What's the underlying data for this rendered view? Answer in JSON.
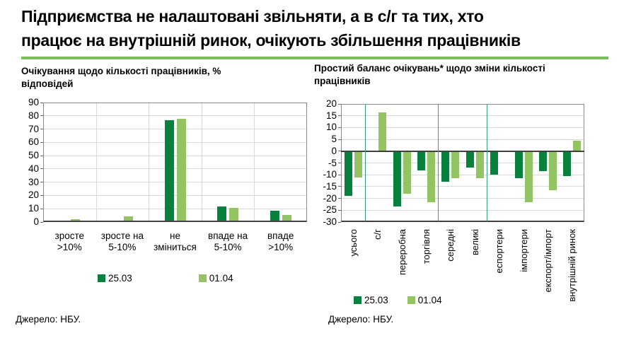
{
  "header": {
    "title_line1": "Підприємства не налаштовані звільняти, а в с/г та тих, хто",
    "title_line2": "працює на внутрішній ринок, очікують збільшення працівників"
  },
  "colors": {
    "series_25_03": "#08803E",
    "series_01_04": "#92C464",
    "title_underline": "#7CBE5B",
    "group_separator": "#35A07C",
    "gridline": "#D9D9D9",
    "plot_border": "#8A8A8A",
    "zero_line": "#404040"
  },
  "chart_data": [
    {
      "type": "bar",
      "title": "Очікування щодо кількості працівників, % відповідей",
      "categories": [
        "зросте\n>10%",
        "зросте на\n5-10%",
        "не\nзміниться",
        "впаде на\n5-10%",
        "впаде\n>10%"
      ],
      "series": [
        {
          "name": "25.03",
          "color": "#08803E",
          "values": [
            1,
            1,
            76.5,
            11.5,
            8.5
          ]
        },
        {
          "name": "01.04",
          "color": "#92C464",
          "values": [
            2,
            4,
            77.5,
            10.5,
            5.5
          ]
        }
      ],
      "ylim": [
        0,
        90
      ],
      "ytick_step": 10,
      "grid": true,
      "legend_position": "bottom",
      "source": "Джерело: НБУ."
    },
    {
      "type": "bar",
      "title": "Простий баланс очікувань* щодо зміни кількості працівників",
      "categories": [
        "усього",
        "с/г",
        "переробна",
        "торгівля",
        "середні",
        "великі",
        "еспортери",
        "імпортери",
        "експорт/імпорт",
        "внутрішній ринок"
      ],
      "series": [
        {
          "name": "25.03",
          "color": "#08803E",
          "values": [
            -19,
            0,
            -23.5,
            -8,
            -13,
            -7,
            -10,
            -11.5,
            -8.5,
            -10.5
          ]
        },
        {
          "name": "01.04",
          "color": "#92C464",
          "values": [
            -11,
            16.5,
            -18,
            -21.5,
            -11.5,
            -11.5,
            0,
            -21.5,
            -16.5,
            4.5
          ]
        }
      ],
      "ylim": [
        -30,
        20
      ],
      "ytick_step": 5,
      "grid": true,
      "separators_after": [
        0,
        3,
        5
      ],
      "legend_position": "bottom",
      "source": "Джерело: НБУ."
    }
  ]
}
